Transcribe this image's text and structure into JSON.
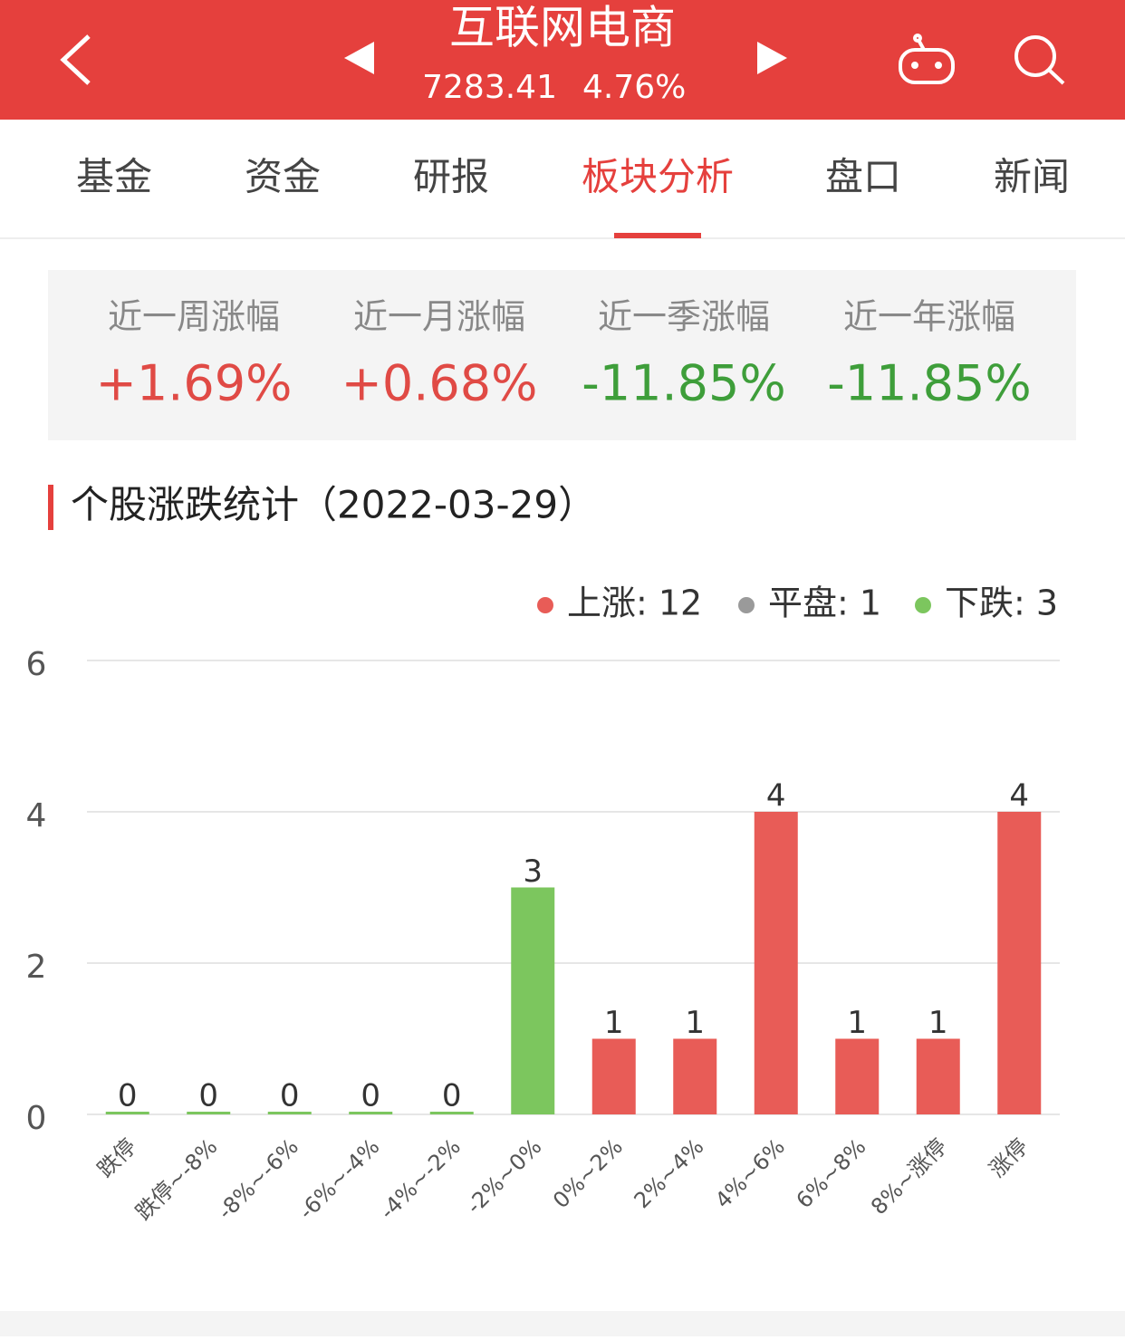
{
  "header": {
    "title": "互联网电商",
    "index_value": "7283.41",
    "change": "4.76%"
  },
  "tabs": [
    "基金",
    "资金",
    "研报",
    "板块分析",
    "盘口",
    "新闻"
  ],
  "active_tab": 3,
  "stats": [
    {
      "label": "近一周涨幅",
      "value": "+1.69%",
      "color": "#e04a45"
    },
    {
      "label": "近一月涨幅",
      "value": "+0.68%",
      "color": "#e04a45"
    },
    {
      "label": "近一季涨幅",
      "value": "-11.85%",
      "color": "#3e9e3a"
    },
    {
      "label": "近一年涨幅",
      "value": "-11.85%",
      "color": "#3e9e3a"
    }
  ],
  "section_title": "个股涨跌统计（2022-03-29）",
  "chart_data": {
    "type": "bar",
    "legend": [
      {
        "label": "上涨: 12",
        "color": "#e85c57"
      },
      {
        "label": "平盘: 1",
        "color": "#9a9a9a"
      },
      {
        "label": "下跌: 3",
        "color": "#7cc65e"
      }
    ],
    "categories": [
      "跌停",
      "跌停~-8%",
      "-8%~-6%",
      "-6%~-4%",
      "-4%~-2%",
      "-2%~0%",
      "0%~2%",
      "2%~4%",
      "4%~6%",
      "6%~8%",
      "8%~涨停",
      "涨停"
    ],
    "values": [
      0,
      0,
      0,
      0,
      0,
      3,
      1,
      1,
      4,
      1,
      1,
      4
    ],
    "colors": [
      "#7cc65e",
      "#7cc65e",
      "#7cc65e",
      "#7cc65e",
      "#7cc65e",
      "#7cc65e",
      "#e85c57",
      "#e85c57",
      "#e85c57",
      "#e85c57",
      "#e85c57",
      "#e85c57"
    ],
    "ylim": [
      0,
      6
    ],
    "yticks": [
      0,
      2,
      4,
      6
    ],
    "grid": true
  }
}
